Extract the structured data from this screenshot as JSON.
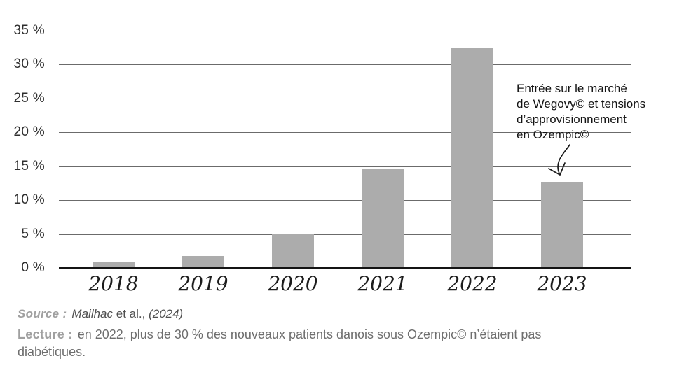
{
  "chart_data": {
    "type": "bar",
    "categories": [
      "2018",
      "2019",
      "2020",
      "2021",
      "2022",
      "2023"
    ],
    "values": [
      0.8,
      1.8,
      5.1,
      14.5,
      32.5,
      12.7
    ],
    "title": "",
    "xlabel": "",
    "ylabel": "",
    "ylim": [
      0,
      35
    ],
    "ytick_step": 5,
    "ytick_suffix": " %",
    "grid": true,
    "legend": "none",
    "bar_color": "#acacac",
    "gridline_color": "#6b6b6b",
    "axis_color": "#141414",
    "annotation": {
      "text": "Entrée sur le marché\nde Wegovy© et tensions\nd’approvisionnement\nen Ozempic©",
      "target_category": "2023"
    }
  },
  "footer": {
    "source_label": "Source :",
    "source_author": "Mailhac",
    "source_etal": "et al.,",
    "source_year": "(2024)",
    "lecture_label": "Lecture :",
    "lecture_text": "en 2022, plus de 30 % des nouveaux patients danois sous Ozempic© n’étaient pas diabétiques."
  }
}
